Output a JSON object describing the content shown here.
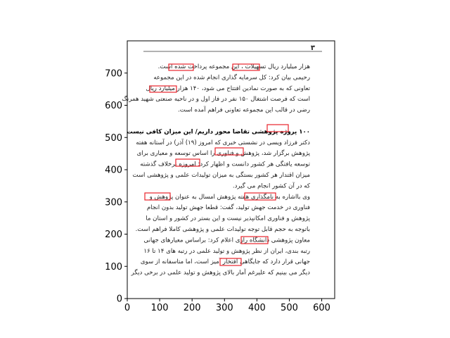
{
  "page_number": "۳",
  "lines": [
    {
      "text": "هزار میلیارد ریال تسهیلات ، این مجموعه پرداخت شده است.",
      "bold": false
    },
    {
      "text": "رحیمی بیان کرد: کل سرمایه گذاری انجام شده در این مجموعه",
      "bold": false
    },
    {
      "text": "تعاونی که به صورت نمادین افتتاح می شود، ۱۴۰ هزار میلیارد ریال",
      "bold": false
    },
    {
      "text": "است که فرصت اشتغال ۱۵۰ نفر در فاز اول و در ناحیه صنعتی شهید همرنگ",
      "bold": false
    },
    {
      "text": "رضی در قالب این مجموعه تعاونی فراهم آمده است.",
      "bold": false
    },
    {
      "text": "",
      "bold": false
    },
    {
      "text": "۱۰۰ پروژه پژوهشی تقاضا محور داریم/ این میزان کافی نیست",
      "bold": true
    },
    {
      "text": "دکتر فرزاد ویسی در نشستی خبری که امروز (۱۹) آذر) در آستانه هفته",
      "bold": false
    },
    {
      "text": "پژوهش برگزار شد، پژوهش و فناوری را اساس توسعه و معیاری برای",
      "bold": false
    },
    {
      "text": "توسعه یافتگی هر کشور دانست و اظهار کرد: امروزه برخلاف گذشته",
      "bold": false
    },
    {
      "text": "میزان اقتدار هر کشور بستگی به میزان تولیدات علمی و پژوهشی است",
      "bold": false
    },
    {
      "text": "که در آن کشور انجام می گیرد.",
      "bold": false
    },
    {
      "text": "وی بااشاره به نامگذاری هفته پژوهش امسال به عنوان پژوهش و",
      "bold": false
    },
    {
      "text": "فناوری در خدمت جهش تولید، گفت: قطعا جهش تولید بدون انجام",
      "bold": false
    },
    {
      "text": "پژوهش و فناوری امکانپذیر نیست و این بستر در کشور و استان ما",
      "bold": false
    },
    {
      "text": "باتوجه به حجم قابل توجه تولیدات علمی و پژوهشی کاملا فراهم است.",
      "bold": false
    },
    {
      "text": "معاون پژوهشی دانشگاه رازی اعلام کرد: براساس معیارهای جهانی",
      "bold": false
    },
    {
      "text": "رتبه بندی، ایران از نظر پژوهش و تولید علمی در رتبه های ۱۴ تا ۱۶",
      "bold": false
    },
    {
      "text": "جهانی قرار دارد که جایگاهی افتخار آمیز است، اما متاسفانه از سوی",
      "bold": false
    },
    {
      "text": "دیگر می بینیم که علیرغم آمار بالای پژوهش و تولید علمی در برخی دیگر",
      "bold": false
    }
  ],
  "highlighted_words": [
    "تسهیلات",
    "پرداخت",
    "میلیارد",
    "پژوهشی",
    "و فناوری",
    "امروزه",
    "نامگذاری",
    "پژوهش",
    "دانشگاه",
    "افتخار"
  ],
  "axes": {
    "x_ticks": [
      0,
      100,
      200,
      300,
      400,
      500,
      600
    ],
    "y_ticks": [
      0,
      100,
      200,
      300,
      400,
      500,
      600,
      700
    ],
    "x_range": [
      0,
      640
    ],
    "y_range": [
      800,
      0
    ]
  },
  "colors": {
    "highlight_box": "#e8232b",
    "text": "#222222",
    "axis": "#000000"
  }
}
